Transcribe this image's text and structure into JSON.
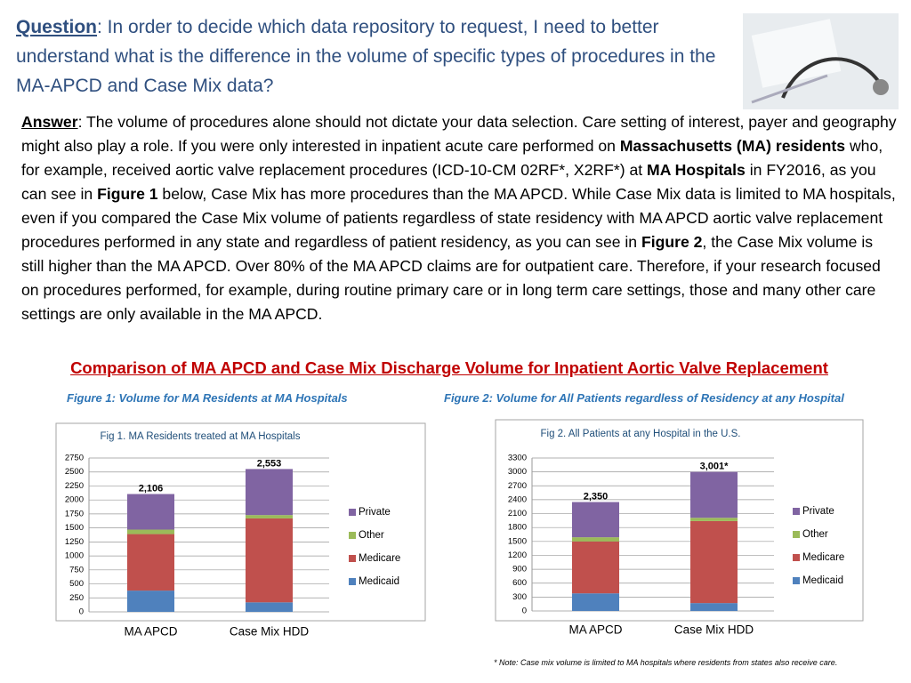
{
  "question": {
    "label": "Question",
    "text": ": In order to decide which data repository to request,  I need to better understand  what is the difference in the volume of specific types of procedures in the MA-APCD and Case Mix data?"
  },
  "answer": {
    "label": "Answer",
    "parts": [
      ":  The volume of procedures alone should not dictate your data selection. Care setting of interest, payer and geography might also play a role.  If you were only interested in inpatient acute care performed on ",
      "Massachusetts (MA) residents",
      " who, for example, received aortic valve replacement procedures (ICD-10-CM 02RF*, X2RF*) at ",
      "MA Hospitals",
      " in FY2016, as you can see in ",
      "Figure 1",
      " below, Case Mix has more procedures than the MA APCD. While Case Mix data is limited to MA hospitals, even if you compared the Case Mix volume of patients regardless of state residency with MA APCD aortic valve replacement procedures performed in any state and regardless of patient residency, as you can see in ",
      "Figure 2",
      ", the Case Mix volume is still higher than the MA APCD.  Over 80% of the MA APCD claims are for outpatient care. Therefore, if your research focused on procedures performed, for example, during routine primary care or in long term care settings, those and many other care settings are only available in the MA APCD."
    ]
  },
  "heading": "Comparison of MA APCD and Case Mix Discharge Volume for Inpatient Aortic Valve Replacement",
  "captions": [
    "Figure 1: Volume for MA Residents at MA Hospitals",
    "Figure 2: Volume for All Patients regardless of Residency at any Hospital"
  ],
  "note": "* Note: Case mix volume is limited to MA hospitals where residents from states also receive care.",
  "chart_data": [
    {
      "type": "stacked-bar",
      "title": "Fig 1. MA Residents treated at MA Hospitals",
      "categories": [
        "MA APCD",
        "Case Mix HDD"
      ],
      "series": [
        {
          "name": "Medicaid",
          "color": "#4f81bd",
          "values": [
            380,
            170
          ]
        },
        {
          "name": "Medicare",
          "color": "#c0504d",
          "values": [
            1010,
            1500
          ]
        },
        {
          "name": "Other",
          "color": "#9bbb59",
          "values": [
            80,
            60
          ]
        },
        {
          "name": "Private",
          "color": "#8064a2",
          "values": [
            636,
            823
          ]
        }
      ],
      "totals": [
        2106,
        2553
      ],
      "total_labels": [
        "2,106",
        "2,553"
      ],
      "ylim": [
        0,
        2750
      ],
      "yticks": [
        0,
        250,
        500,
        750,
        1000,
        1250,
        1500,
        1750,
        2000,
        2250,
        2500,
        2750
      ],
      "grid": true
    },
    {
      "type": "stacked-bar",
      "title": "Fig 2. All Patients at any Hospital in the U.S.",
      "categories": [
        "MA APCD",
        "Case Mix HDD"
      ],
      "series": [
        {
          "name": "Medicaid",
          "color": "#4f81bd",
          "values": [
            380,
            170
          ]
        },
        {
          "name": "Medicare",
          "color": "#c0504d",
          "values": [
            1120,
            1770
          ]
        },
        {
          "name": "Other",
          "color": "#9bbb59",
          "values": [
            90,
            70
          ]
        },
        {
          "name": "Private",
          "color": "#8064a2",
          "values": [
            760,
            991
          ]
        }
      ],
      "totals": [
        2350,
        3001
      ],
      "total_labels": [
        "2,350",
        "3,001*"
      ],
      "ylim": [
        0,
        3300
      ],
      "yticks": [
        0,
        300,
        600,
        900,
        1200,
        1500,
        1800,
        2100,
        2400,
        2700,
        3000,
        3300
      ],
      "grid": true
    }
  ]
}
